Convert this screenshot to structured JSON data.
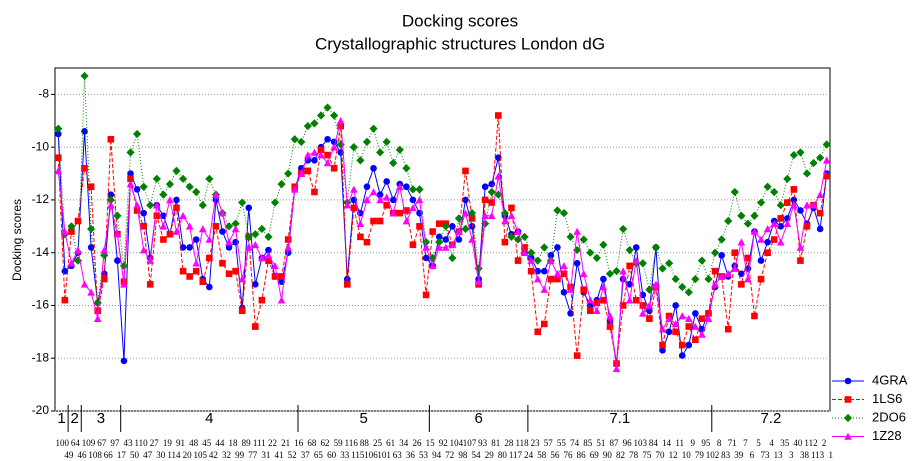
{
  "chart_data": {
    "type": "line",
    "title": "Docking scores",
    "subtitle": "Crystallographic structures London dG",
    "y_label": "Docking scores",
    "categories": [
      "100",
      "49",
      "64",
      "46",
      "109",
      "108",
      "67",
      "66",
      "97",
      "17",
      "43",
      "50",
      "110",
      "47",
      "27",
      "30",
      "19",
      "114",
      "91",
      "20",
      "48",
      "105",
      "45",
      "42",
      "44",
      "32",
      "18",
      "99",
      "89",
      "77",
      "111",
      "31",
      "22",
      "41",
      "21",
      "52",
      "16",
      "37",
      "68",
      "65",
      "62",
      "60",
      "59",
      "33",
      "116",
      "115",
      "88",
      "106",
      "25",
      "101",
      "61",
      "63",
      "34",
      "36",
      "26",
      "53",
      "15",
      "94",
      "92",
      "72",
      "104",
      "98",
      "107",
      "54",
      "93",
      "29",
      "81",
      "80",
      "28",
      "117",
      "118",
      "24",
      "23",
      "58",
      "57",
      "56",
      "55",
      "76",
      "74",
      "86",
      "85",
      "69",
      "51",
      "90",
      "87",
      "82",
      "96",
      "78",
      "103",
      "75",
      "84",
      "70",
      "14",
      "12",
      "11",
      "10",
      "9",
      "79",
      "95",
      "102",
      "8",
      "83",
      "71",
      "39",
      "7",
      "6",
      "5",
      "73",
      "4",
      "13",
      "35",
      "3",
      "40",
      "38",
      "112",
      "113",
      "2",
      "1"
    ],
    "groups": [
      {
        "label": "1",
        "count": 2
      },
      {
        "label": "2",
        "count": 2
      },
      {
        "label": "3",
        "count": 6
      },
      {
        "label": "4",
        "count": 27
      },
      {
        "label": "5",
        "count": 20
      },
      {
        "label": "6",
        "count": 15
      },
      {
        "label": "7.1",
        "count": 28
      },
      {
        "label": "7.2",
        "count": 18
      }
    ],
    "ylim": [
      -20,
      -7
    ],
    "yticks": [
      -20,
      -18,
      -16,
      -14,
      -12,
      -10,
      -8
    ],
    "grid": true,
    "legend": "bottom-right",
    "series": [
      {
        "name": "4GRA",
        "color": "#0000ff",
        "marker": "circle",
        "dash": "solid",
        "values": [
          -9.5,
          -14.7,
          -14.5,
          -14.0,
          -9.4,
          -13.8,
          -15.9,
          -14.8,
          -11.8,
          -14.3,
          -18.1,
          -11.0,
          -11.6,
          -12.5,
          -14.2,
          -12.2,
          -12.6,
          -13.3,
          -12.0,
          -13.8,
          -13.8,
          -13.5,
          -15.0,
          -15.3,
          -12.0,
          -13.2,
          -13.8,
          -13.6,
          -16.1,
          -12.3,
          -15.2,
          -14.2,
          -13.9,
          -14.9,
          -15.1,
          -14.0,
          -11.6,
          -10.8,
          -10.5,
          -10.5,
          -10.0,
          -9.7,
          -9.8,
          -10.2,
          -15.0,
          -12.0,
          -12.5,
          -11.5,
          -10.8,
          -11.8,
          -11.3,
          -12.0,
          -11.4,
          -11.5,
          -12.0,
          -12.5,
          -14.2,
          -14.5,
          -13.4,
          -13.5,
          -13.0,
          -13.5,
          -12.0,
          -13.0,
          -15.0,
          -11.5,
          -11.4,
          -10.4,
          -12.6,
          -13.3,
          -13.2,
          -14.0,
          -14.2,
          -14.7,
          -14.7,
          -14.1,
          -13.8,
          -15.5,
          -16.3,
          -14.4,
          -15.5,
          -16.0,
          -15.8,
          -15.0,
          -16.6,
          -18.2,
          -15.0,
          -15.2,
          -13.8,
          -15.6,
          -16.2,
          -13.8,
          -17.7,
          -17.0,
          -16.0,
          -17.9,
          -17.5,
          -16.3,
          -16.9,
          -16.3,
          -15.3,
          -14.1,
          -14.9,
          -14.5,
          -14.8,
          -14.6,
          -13.2,
          -14.3,
          -13.6,
          -12.8,
          -13.0,
          -12.7,
          -12.0,
          -12.4,
          -12.9,
          -12.3,
          -13.1,
          -11.0
        ]
      },
      {
        "name": "1LS6",
        "color": "#ff0000",
        "marker": "square",
        "dash": "dashed",
        "values": [
          -10.4,
          -15.8,
          -13.2,
          -12.8,
          -10.8,
          -11.5,
          -16.2,
          -15.0,
          -9.7,
          -13.3,
          -15.1,
          -11.2,
          -12.4,
          -13.0,
          -15.2,
          -12.6,
          -13.5,
          -13.3,
          -12.3,
          -14.7,
          -14.9,
          -14.7,
          -15.1,
          -14.2,
          -13.0,
          -14.4,
          -14.8,
          -14.7,
          -16.2,
          -13.4,
          -16.8,
          -15.8,
          -14.3,
          -14.9,
          -14.9,
          -13.5,
          -11.5,
          -11.0,
          -10.9,
          -11.7,
          -10.1,
          -10.3,
          -10.8,
          -9.2,
          -15.2,
          -12.3,
          -13.4,
          -13.6,
          -12.8,
          -12.8,
          -12.2,
          -12.5,
          -12.5,
          -12.4,
          -13.7,
          -13.0,
          -15.6,
          -13.2,
          -12.9,
          -12.9,
          -13.7,
          -13.2,
          -10.9,
          -12.7,
          -15.2,
          -12.0,
          -12.1,
          -8.8,
          -13.6,
          -12.3,
          -14.3,
          -13.8,
          -14.7,
          -17.0,
          -16.7,
          -15.0,
          -15.0,
          -14.8,
          -15.3,
          -17.9,
          -15.4,
          -16.2,
          -15.9,
          -15.8,
          -16.8,
          -18.2,
          -16.0,
          -14.5,
          -15.8,
          -16.0,
          -16.5,
          -15.3,
          -17.5,
          -16.4,
          -17.0,
          -17.5,
          -16.8,
          -17.3,
          -16.5,
          -16.3,
          -14.7,
          -14.9,
          -16.9,
          -14.0,
          -15.2,
          -14.2,
          -16.4,
          -15.0,
          -14.0,
          -13.5,
          -12.7,
          -12.1,
          -11.6,
          -14.3,
          -13.0,
          -12.2,
          -12.5,
          -11.1
        ]
      },
      {
        "name": "2DO6",
        "color": "#008000",
        "marker": "diamond",
        "dash": "dotted",
        "values": [
          -9.3,
          -13.3,
          -13.0,
          -14.3,
          -7.3,
          -13.1,
          -15.9,
          -14.1,
          -12.0,
          -12.6,
          -14.5,
          -10.2,
          -9.5,
          -11.5,
          -12.2,
          -11.2,
          -11.8,
          -11.4,
          -10.9,
          -11.2,
          -11.5,
          -11.7,
          -12.2,
          -11.2,
          -11.8,
          -12.5,
          -13.0,
          -12.9,
          -12.1,
          -13.4,
          -13.3,
          -13.1,
          -13.4,
          -12.1,
          -11.4,
          -11.0,
          -9.7,
          -9.8,
          -9.2,
          -9.1,
          -8.8,
          -8.5,
          -8.8,
          -9.9,
          -12.1,
          -10.0,
          -10.5,
          -9.8,
          -9.3,
          -10.2,
          -9.8,
          -10.6,
          -10.1,
          -10.8,
          -11.6,
          -11.6,
          -13.6,
          -14.2,
          -13.6,
          -13.0,
          -14.2,
          -12.7,
          -13.1,
          -12.5,
          -14.6,
          -12.9,
          -11.7,
          -11.8,
          -12.5,
          -13.4,
          -13.5,
          -13.4,
          -14.0,
          -14.3,
          -13.8,
          -14.3,
          -12.4,
          -12.5,
          -13.4,
          -13.9,
          -13.5,
          -14.0,
          -14.2,
          -13.7,
          -14.8,
          -14.7,
          -13.1,
          -13.9,
          -14.4,
          -14.4,
          -15.4,
          -13.8,
          -14.6,
          -14.4,
          -15.0,
          -15.3,
          -15.5,
          -15.0,
          -14.3,
          -15.0,
          -14.0,
          -13.5,
          -12.8,
          -11.7,
          -12.6,
          -12.9,
          -12.6,
          -12.1,
          -11.5,
          -11.7,
          -12.2,
          -11.2,
          -10.3,
          -10.2,
          -11.0,
          -10.6,
          -10.4,
          -9.9
        ]
      },
      {
        "name": "1Z28",
        "color": "#ff00ff",
        "marker": "triangle",
        "dash": "solid",
        "values": [
          -10.9,
          -13.2,
          -14.4,
          -13.9,
          -15.2,
          -15.5,
          -16.5,
          -13.9,
          -12.2,
          -13.3,
          -15.2,
          -11.4,
          -12.2,
          -13.9,
          -14.3,
          -12.2,
          -13.0,
          -12.0,
          -13.2,
          -12.6,
          -13.0,
          -14.4,
          -13.1,
          -13.5,
          -11.8,
          -12.5,
          -13.6,
          -13.1,
          -15.0,
          -13.8,
          -13.7,
          -14.2,
          -14.1,
          -14.5,
          -15.8,
          -13.8,
          -11.6,
          -11.0,
          -10.3,
          -10.2,
          -10.3,
          -10.6,
          -10.0,
          -9.0,
          -12.2,
          -11.6,
          -12.9,
          -12.0,
          -11.7,
          -12.0,
          -11.9,
          -12.5,
          -11.5,
          -12.8,
          -12.3,
          -12.0,
          -13.8,
          -14.5,
          -13.8,
          -13.8,
          -13.7,
          -13.2,
          -12.5,
          -13.5,
          -15.1,
          -12.6,
          -12.6,
          -11.1,
          -12.8,
          -12.6,
          -13.2,
          -14.0,
          -14.3,
          -15.0,
          -15.4,
          -14.3,
          -14.8,
          -14.5,
          -15.4,
          -13.2,
          -14.8,
          -15.8,
          -16.2,
          -15.3,
          -16.4,
          -18.4,
          -14.7,
          -15.8,
          -14.3,
          -16.3,
          -16.0,
          -15.2,
          -16.9,
          -16.5,
          -16.7,
          -16.4,
          -16.5,
          -16.8,
          -17.1,
          -16.5,
          -15.2,
          -14.9,
          -14.8,
          -14.6,
          -13.6,
          -15.0,
          -13.2,
          -13.5,
          -13.1,
          -12.9,
          -13.6,
          -12.9,
          -12.2,
          -13.8,
          -12.2,
          -12.2,
          -11.8,
          -10.5
        ]
      }
    ]
  }
}
